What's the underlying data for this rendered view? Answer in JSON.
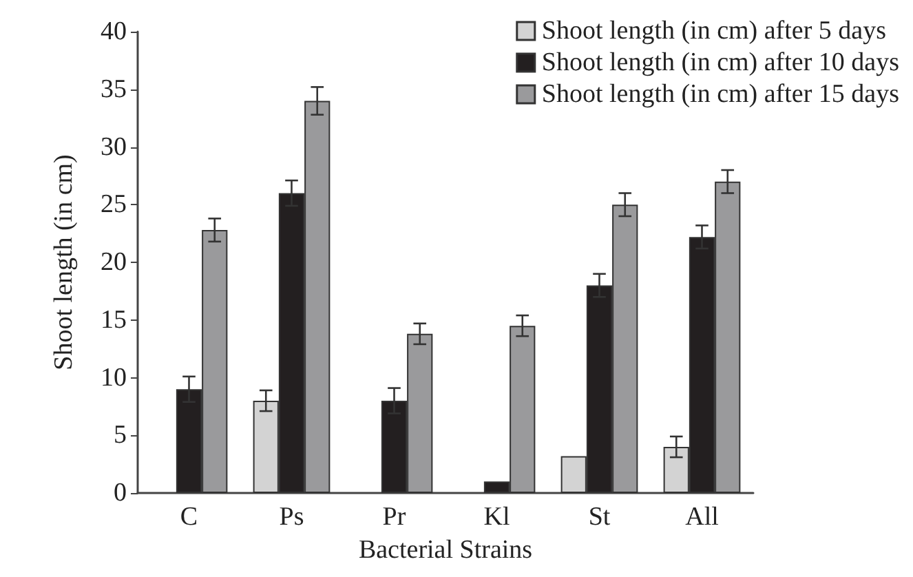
{
  "chart_data": {
    "type": "bar",
    "xlabel": "Bacterial Strains",
    "ylabel": "Shoot length (in cm)",
    "categories": [
      "C",
      "Ps",
      "Pr",
      "Kl",
      "St",
      "All"
    ],
    "series": [
      {
        "name": "Shoot length (in cm) after 5 days",
        "color": "#d3d3d3",
        "values": [
          null,
          8,
          null,
          null,
          3.2,
          4
        ],
        "errors": [
          null,
          0.9,
          null,
          null,
          null,
          0.9
        ]
      },
      {
        "name": "Shoot length (in cm) after 10 days",
        "color": "#231f20",
        "values": [
          9,
          26,
          8,
          1,
          18,
          22.2
        ],
        "errors": [
          1.1,
          1.1,
          1.1,
          null,
          1,
          1
        ]
      },
      {
        "name": "Shoot length (in cm) after 15 days",
        "color": "#9a9a9c",
        "values": [
          22.8,
          34,
          13.8,
          14.5,
          25,
          27
        ],
        "errors": [
          1,
          1.2,
          0.9,
          0.9,
          1,
          1
        ]
      }
    ],
    "ylim": [
      0,
      40
    ],
    "yticks": [
      0,
      5,
      10,
      15,
      20,
      25,
      30,
      35,
      40
    ],
    "grid": false,
    "legend": "top right"
  }
}
